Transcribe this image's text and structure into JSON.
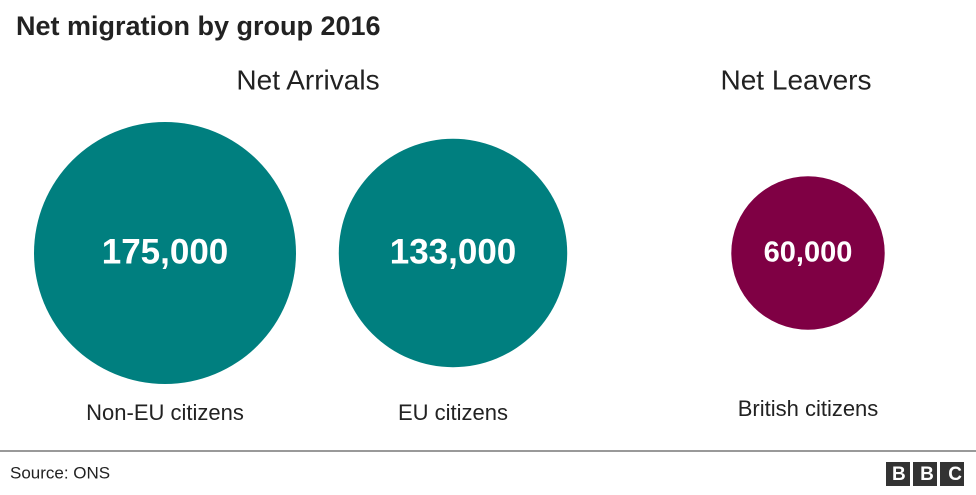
{
  "chart_data": {
    "type": "bubble",
    "title": "Net migration by group 2016",
    "series": [
      {
        "name": "Net Arrivals",
        "color": "#007f7f",
        "categories": [
          "Non-EU citizens",
          "EU citizens"
        ],
        "values": [
          175000,
          133000
        ],
        "value_labels": [
          "175,000",
          "133,000"
        ]
      },
      {
        "name": "Net Leavers",
        "color": "#7f0044",
        "categories": [
          "British citizens"
        ],
        "values": [
          60000
        ],
        "value_labels": [
          "60,000"
        ]
      }
    ],
    "source": "Source: ONS",
    "logo": "BBC"
  }
}
